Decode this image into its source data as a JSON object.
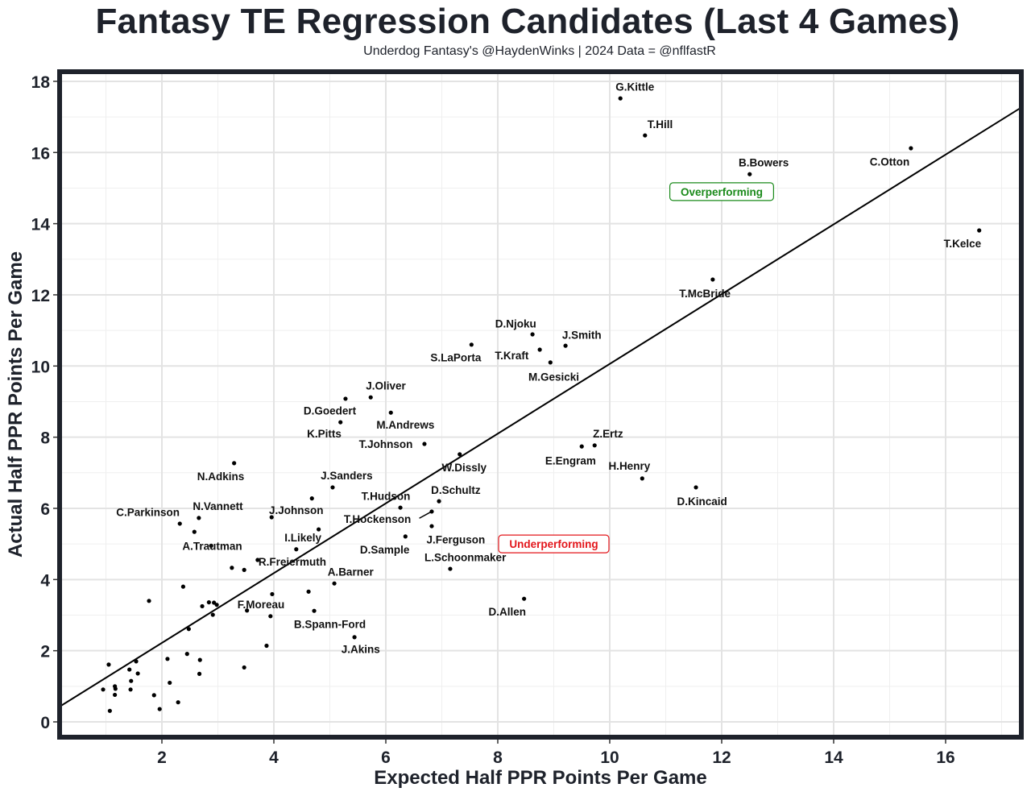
{
  "chart_data": {
    "type": "scatter",
    "title": "Fantasy TE Regression Candidates (Last 4 Games)",
    "subtitle": "Underdog Fantasy's @HaydenWinks | 2024 Data = @nflfastR",
    "xlabel": "Expected Half PPR Points Per Game",
    "ylabel": "Actual Half PPR Points Per Game",
    "xlim": [
      0.2,
      17.3
    ],
    "ylim": [
      -0.5,
      18.3
    ],
    "xticks": [
      2,
      4,
      6,
      8,
      10,
      12,
      14,
      16
    ],
    "yticks": [
      0,
      2,
      4,
      6,
      8,
      10,
      12,
      14,
      16,
      18
    ],
    "grid": true,
    "regression_line": {
      "intercept": 0.26,
      "slope": 0.98
    },
    "annotations": [
      {
        "text": "Overperforming",
        "x": 12.0,
        "y": 14.9,
        "color": "#1a8a1a"
      },
      {
        "text": "Underperforming",
        "x": 9.0,
        "y": 5.0,
        "color": "#e3161b"
      }
    ],
    "points": [
      {
        "name": "G.Kittle",
        "x": 10.19,
        "y": 17.52,
        "lx": 10.45,
        "ly": 17.85
      },
      {
        "name": "T.Hill",
        "x": 10.63,
        "y": 16.48,
        "lx": 10.9,
        "ly": 16.8
      },
      {
        "name": "B.Bowers",
        "x": 12.5,
        "y": 15.39,
        "lx": 12.75,
        "ly": 15.72
      },
      {
        "name": "C.Otton",
        "x": 15.38,
        "y": 16.12,
        "lx": 15.0,
        "ly": 15.75
      },
      {
        "name": "T.Kelce",
        "x": 16.6,
        "y": 13.81,
        "lx": 16.3,
        "ly": 13.45
      },
      {
        "name": "T.McBride",
        "x": 11.84,
        "y": 12.43,
        "lx": 11.7,
        "ly": 12.05
      },
      {
        "name": "D.Njoku",
        "x": 8.62,
        "y": 10.89,
        "lx": 8.32,
        "ly": 11.2
      },
      {
        "name": "J.Smith",
        "x": 9.21,
        "y": 10.57,
        "lx": 9.5,
        "ly": 10.88
      },
      {
        "name": "S.LaPorta",
        "x": 7.53,
        "y": 10.6,
        "lx": 7.25,
        "ly": 10.25
      },
      {
        "name": "T.Kraft",
        "x": 8.75,
        "y": 10.46,
        "lx": 8.25,
        "ly": 10.3
      },
      {
        "name": "M.Gesicki",
        "x": 8.94,
        "y": 10.1,
        "lx": 9.0,
        "ly": 9.7
      },
      {
        "name": "J.Oliver",
        "x": 5.73,
        "y": 9.12,
        "lx": 6.0,
        "ly": 9.45
      },
      {
        "name": "D.Goedert",
        "x": 5.28,
        "y": 9.08,
        "lx": 5.0,
        "ly": 8.75
      },
      {
        "name": "M.Andrews",
        "x": 6.09,
        "y": 8.69,
        "lx": 6.35,
        "ly": 8.35
      },
      {
        "name": "K.Pitts",
        "x": 5.19,
        "y": 8.42,
        "lx": 4.9,
        "ly": 8.1
      },
      {
        "name": "T.Johnson",
        "x": 6.69,
        "y": 7.81,
        "lx": 6.0,
        "ly": 7.81
      },
      {
        "name": "W.Dissly",
        "x": 7.32,
        "y": 7.52,
        "lx": 7.4,
        "ly": 7.15
      },
      {
        "name": "Z.Ertz",
        "x": 9.73,
        "y": 7.77,
        "lx": 9.97,
        "ly": 8.1
      },
      {
        "name": "E.Engram",
        "x": 9.5,
        "y": 7.74,
        "lx": 9.3,
        "ly": 7.35
      },
      {
        "name": "H.Henry",
        "x": 10.58,
        "y": 6.84,
        "lx": 10.35,
        "ly": 7.2
      },
      {
        "name": "D.Kincaid",
        "x": 11.54,
        "y": 6.59,
        "lx": 11.65,
        "ly": 6.2
      },
      {
        "name": "N.Adkins",
        "x": 3.29,
        "y": 7.27,
        "lx": 3.05,
        "ly": 6.9
      },
      {
        "name": "J.Sanders",
        "x": 5.05,
        "y": 6.59,
        "lx": 5.3,
        "ly": 6.93
      },
      {
        "name": "C.Parkinson",
        "x": 2.32,
        "y": 5.57,
        "lx": 1.75,
        "ly": 5.9
      },
      {
        "name": "N.Vannett",
        "x": 2.66,
        "y": 5.73,
        "lx": 3.0,
        "ly": 6.07
      },
      {
        "name": "A.Trautman",
        "x": 2.58,
        "y": 5.34,
        "lx": 2.9,
        "ly": 4.95
      },
      {
        "name": "J.Johnson",
        "x": 3.96,
        "y": 5.75,
        "lx": 4.4,
        "ly": 5.95
      },
      {
        "name": "T.Hudson",
        "x": 6.26,
        "y": 6.02,
        "lx": 6.0,
        "ly": 6.35
      },
      {
        "name": "D.Schultz",
        "x": 6.95,
        "y": 6.2,
        "lx": 7.25,
        "ly": 6.52
      },
      {
        "name": "T.Hockenson",
        "x": 6.82,
        "y": 5.91,
        "lx": 5.85,
        "ly": 5.7,
        "segment": true
      },
      {
        "name": "J.Ferguson",
        "x": 6.82,
        "y": 5.5,
        "lx": 7.25,
        "ly": 5.13
      },
      {
        "name": "D.Sample",
        "x": 6.35,
        "y": 5.21,
        "lx": 5.98,
        "ly": 4.85
      },
      {
        "name": "I.Likely",
        "x": 4.4,
        "y": 4.85,
        "lx": 4.52,
        "ly": 5.18
      },
      {
        "name": "R.Freiermuth",
        "x": 3.71,
        "y": 4.55,
        "lx": 4.33,
        "ly": 4.5
      },
      {
        "name": "L.Schoonmaker",
        "x": 7.15,
        "y": 4.3,
        "lx": 7.42,
        "ly": 4.63
      },
      {
        "name": "A.Barner",
        "x": 5.08,
        "y": 3.89,
        "lx": 5.37,
        "ly": 4.22
      },
      {
        "name": "D.Allen",
        "x": 8.47,
        "y": 3.46,
        "lx": 8.17,
        "ly": 3.1
      },
      {
        "name": "F.Moreau",
        "x": 3.94,
        "y": 2.97,
        "lx": 3.77,
        "ly": 3.3
      },
      {
        "name": "B.Spann-Ford",
        "x": 4.72,
        "y": 3.12,
        "lx": 5.0,
        "ly": 2.75
      },
      {
        "name": "J.Akins",
        "x": 5.44,
        "y": 2.38,
        "lx": 5.55,
        "ly": 2.05
      },
      {
        "name": "",
        "x": 4.8,
        "y": 5.41
      },
      {
        "name": "",
        "x": 4.68,
        "y": 6.28
      },
      {
        "name": "",
        "x": 2.88,
        "y": 4.95
      },
      {
        "name": "",
        "x": 3.25,
        "y": 4.33
      },
      {
        "name": "",
        "x": 3.47,
        "y": 4.27
      },
      {
        "name": "",
        "x": 4.62,
        "y": 3.66
      },
      {
        "name": "",
        "x": 3.97,
        "y": 3.59
      },
      {
        "name": "",
        "x": 3.52,
        "y": 3.13
      },
      {
        "name": "",
        "x": 3.87,
        "y": 2.14
      },
      {
        "name": "",
        "x": 3.47,
        "y": 1.53
      },
      {
        "name": "",
        "x": 2.38,
        "y": 3.8
      },
      {
        "name": "",
        "x": 1.77,
        "y": 3.4
      },
      {
        "name": "",
        "x": 2.84,
        "y": 3.36
      },
      {
        "name": "",
        "x": 2.93,
        "y": 3.35
      },
      {
        "name": "",
        "x": 2.98,
        "y": 3.29
      },
      {
        "name": "",
        "x": 2.72,
        "y": 3.25
      },
      {
        "name": "",
        "x": 2.91,
        "y": 3.01
      },
      {
        "name": "",
        "x": 2.48,
        "y": 2.61
      },
      {
        "name": "",
        "x": 2.45,
        "y": 1.91
      },
      {
        "name": "",
        "x": 2.1,
        "y": 1.77
      },
      {
        "name": "",
        "x": 2.68,
        "y": 1.74
      },
      {
        "name": "",
        "x": 2.67,
        "y": 1.35
      },
      {
        "name": "",
        "x": 2.14,
        "y": 1.1
      },
      {
        "name": "",
        "x": 2.29,
        "y": 0.55
      },
      {
        "name": "",
        "x": 1.96,
        "y": 0.36
      },
      {
        "name": "",
        "x": 1.86,
        "y": 0.75
      },
      {
        "name": "",
        "x": 1.54,
        "y": 1.7
      },
      {
        "name": "",
        "x": 1.57,
        "y": 1.36
      },
      {
        "name": "",
        "x": 1.42,
        "y": 1.47
      },
      {
        "name": "",
        "x": 1.45,
        "y": 1.15
      },
      {
        "name": "",
        "x": 1.44,
        "y": 0.91
      },
      {
        "name": "",
        "x": 1.05,
        "y": 1.61
      },
      {
        "name": "",
        "x": 1.16,
        "y": 1.0
      },
      {
        "name": "",
        "x": 1.17,
        "y": 0.93
      },
      {
        "name": "",
        "x": 1.16,
        "y": 0.76
      },
      {
        "name": "",
        "x": 0.95,
        "y": 0.91
      },
      {
        "name": "",
        "x": 1.07,
        "y": 0.31
      }
    ]
  }
}
